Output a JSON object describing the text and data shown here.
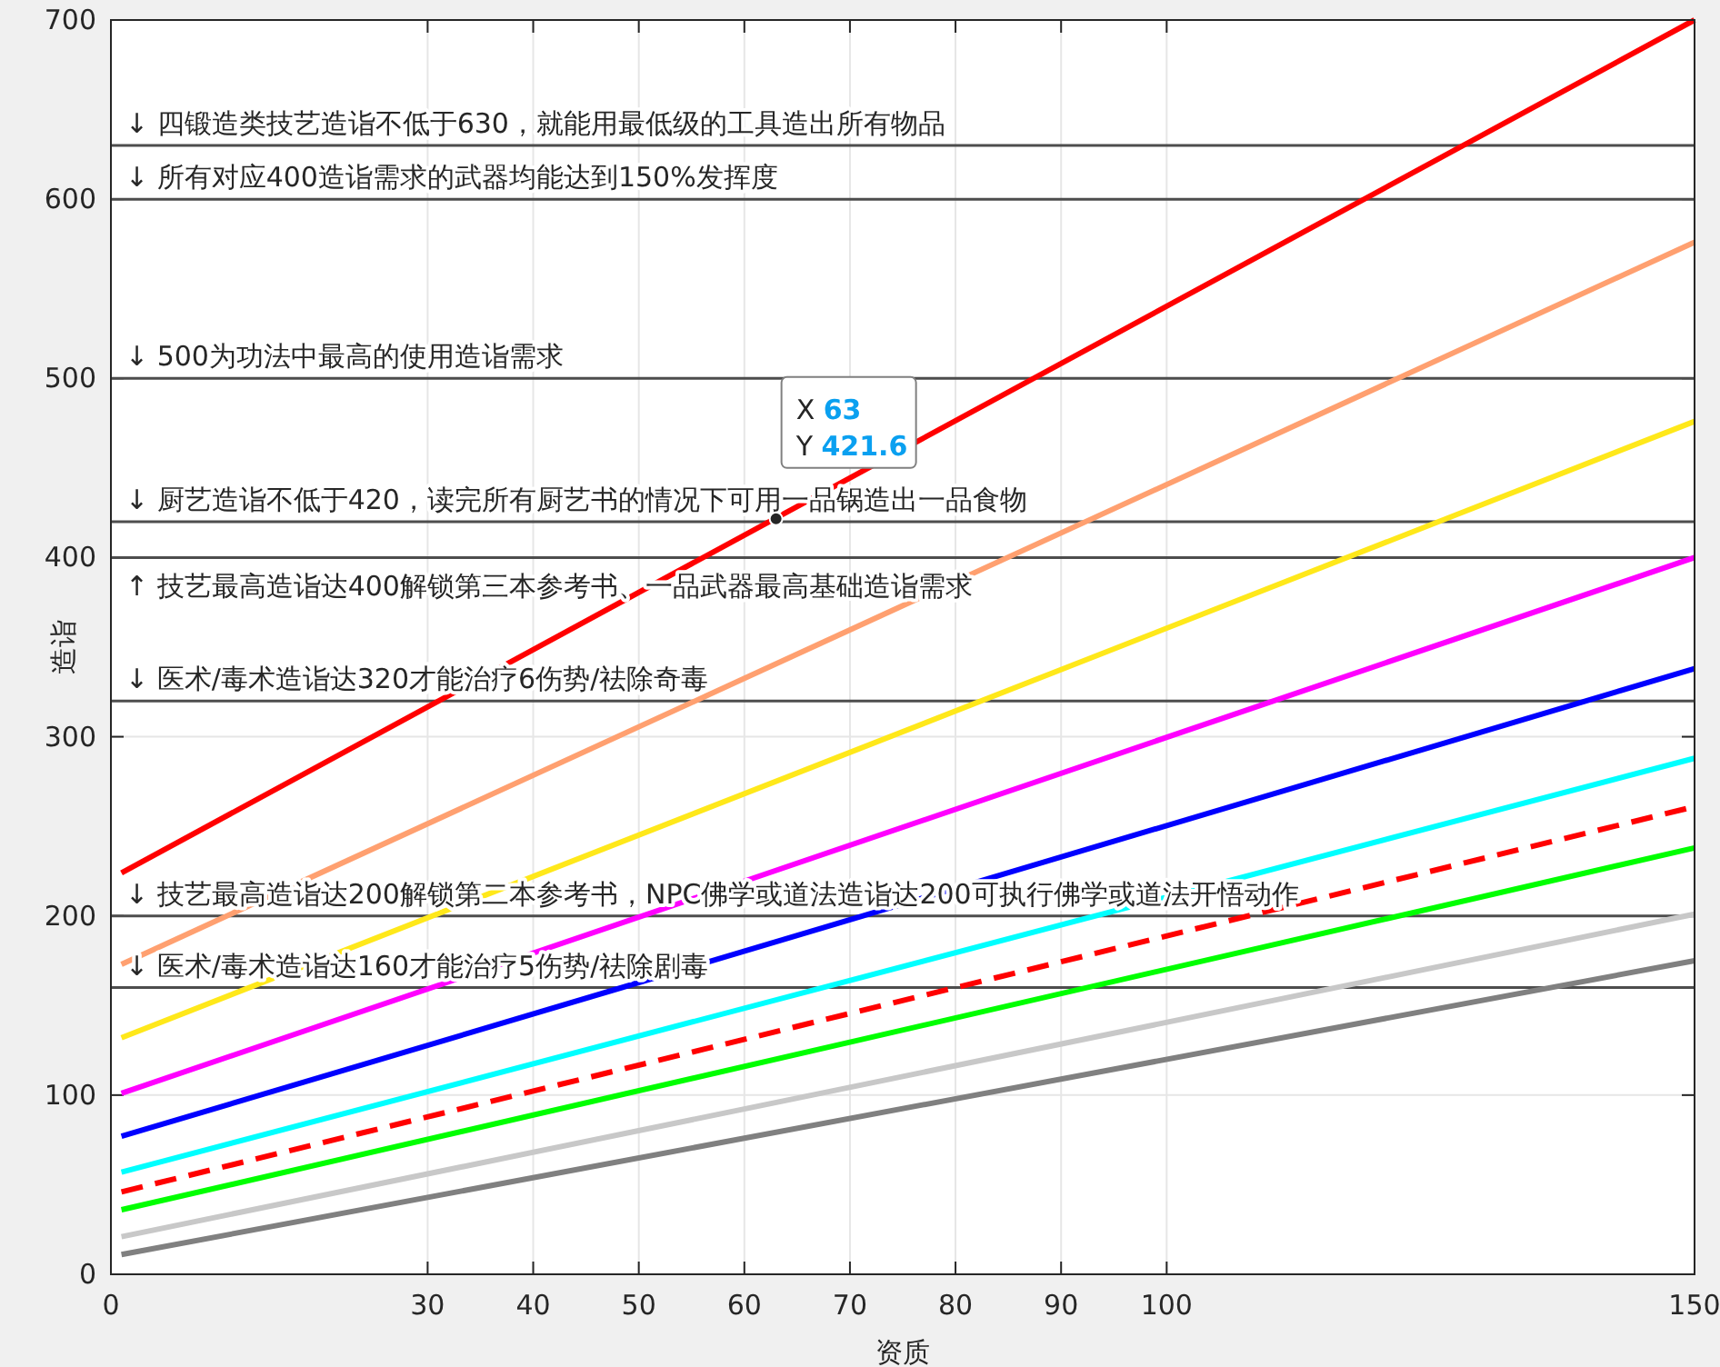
{
  "chart_data": {
    "type": "line",
    "xlabel": "资质",
    "ylabel": "造诣",
    "xlim": [
      0,
      150
    ],
    "ylim": [
      0,
      700
    ],
    "xticks": [
      0,
      30,
      40,
      50,
      60,
      70,
      80,
      90,
      100,
      150
    ],
    "x": [
      1,
      150
    ],
    "yticks": [
      0,
      100,
      200,
      300,
      400,
      500,
      600,
      700
    ],
    "grid": true,
    "series": [
      {
        "color": "#ff0000",
        "values": [
          224,
          700
        ]
      },
      {
        "color": "#ffa070",
        "values": [
          173,
          576
        ]
      },
      {
        "color": "#ffe81a",
        "values": [
          132,
          476
        ]
      },
      {
        "color": "#ff00ff",
        "values": [
          101,
          400
        ]
      },
      {
        "color": "#0000ff",
        "values": [
          77,
          338
        ]
      },
      {
        "color": "#00ffff",
        "values": [
          57,
          288
        ]
      },
      {
        "color": "#ff0000",
        "values": [
          46,
          261
        ],
        "line_style": "dashed"
      },
      {
        "color": "#00ff00",
        "values": [
          36,
          238
        ]
      },
      {
        "color": "#c8c8c8",
        "values": [
          21,
          201
        ]
      },
      {
        "color": "#808080",
        "values": [
          11,
          175
        ]
      }
    ],
    "ref_lines": [
      {
        "axis": "y",
        "value": 630,
        "label": "↓ 四锻造类技艺造诣不低于630，就能用最低级的工具造出所有物品"
      },
      {
        "axis": "y",
        "value": 600,
        "label": "↓ 所有对应400造诣需求的武器均能达到150%发挥度"
      },
      {
        "axis": "y",
        "value": 500,
        "label": "↓ 500为功法中最高的使用造诣需求"
      },
      {
        "axis": "y",
        "value": 420,
        "label": "↓ 厨艺造诣不低于420，读完所有厨艺书的情况下可用一品锅造出一品食物"
      },
      {
        "axis": "y",
        "value": 400,
        "label": "↑ 技艺最高造诣达400解锁第三本参考书、一品武器最高基础造诣需求"
      },
      {
        "axis": "y",
        "value": 320,
        "label": "↓ 医术/毒术造诣达320才能治疗6伤势/祛除奇毒"
      },
      {
        "axis": "y",
        "value": 200,
        "label": "↓ 技艺最高造诣达200解锁第二本参考书，NPC佛学或道法造诣达200可执行佛学或道法开悟动作"
      },
      {
        "axis": "y",
        "value": 160,
        "label": "↓ 医术/毒术造诣达160才能治疗5伤势/祛除剧毒"
      }
    ],
    "annotations": [
      {
        "text": "X 63\nY 421.6",
        "x": 63,
        "y": 421.6
      }
    ]
  }
}
